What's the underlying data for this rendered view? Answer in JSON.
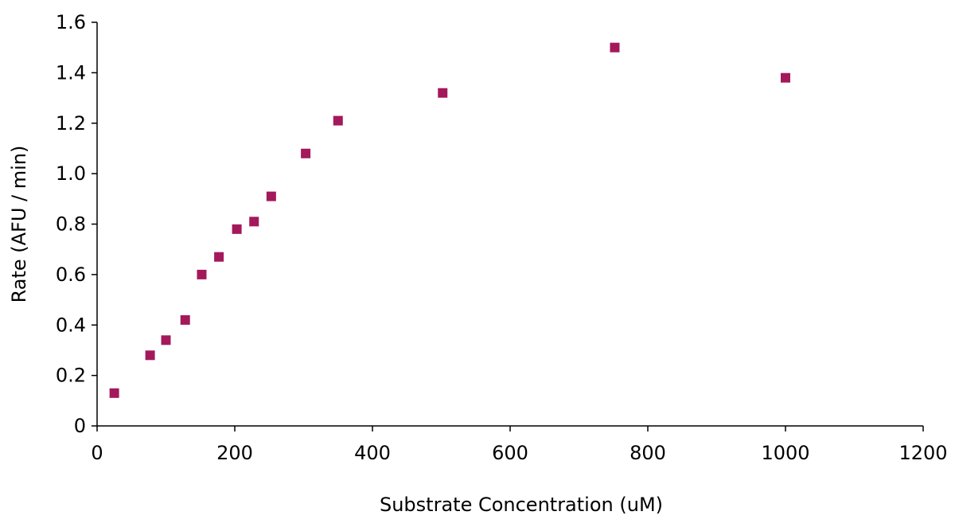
{
  "chart_data": {
    "type": "scatter",
    "title": "",
    "xlabel": "Substrate Concentration (uM)",
    "ylabel": "Rate (AFU / min)",
    "xlim": [
      0,
      1200
    ],
    "ylim": [
      0,
      1.6
    ],
    "x_ticks": [
      "0",
      "200",
      "400",
      "600",
      "800",
      "1000",
      "1200"
    ],
    "y_ticks": [
      "0",
      "0.2",
      "0.4",
      "0.6",
      "0.8",
      "1.0",
      "1.2",
      "1.4",
      "1.6"
    ],
    "grid": false,
    "legend": "none",
    "marker_color": "#A3195B",
    "marker_shape": "square",
    "series": [
      {
        "x": [
          25,
          77,
          100,
          128,
          152,
          177,
          203,
          228,
          253,
          303,
          350,
          502,
          752,
          1000
        ],
        "y": [
          0.13,
          0.28,
          0.34,
          0.42,
          0.6,
          0.67,
          0.78,
          0.81,
          0.91,
          1.08,
          1.21,
          1.32,
          1.5,
          1.38
        ]
      }
    ]
  }
}
